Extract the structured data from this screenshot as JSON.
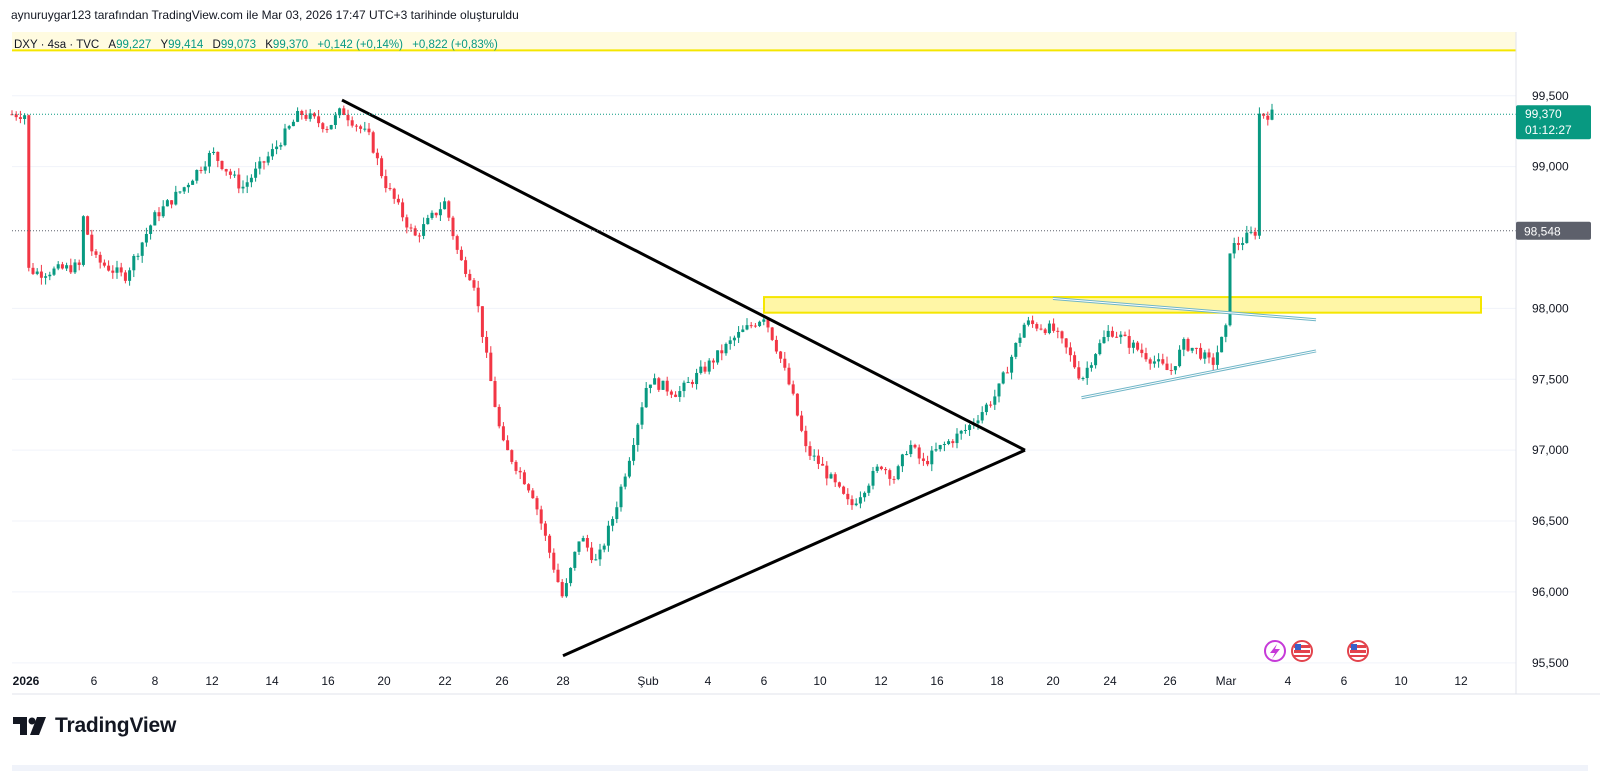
{
  "header": {
    "caption": "aynuruygar123 tarafından TradingView.com ile Mar 03, 2026 17:47 UTC+3 tarihinde oluşturuldu"
  },
  "legend": {
    "symbol": "DXY · 4sa · TVC",
    "open_label": "A",
    "open": "99,227",
    "high_label": "Y",
    "high": "99,414",
    "low_label": "D",
    "low": "99,073",
    "close_label": "K",
    "close": "99,370",
    "change": "+0,142 (+0,14%)",
    "change2": "+0,822 (+0,83%)"
  },
  "brand": {
    "name": "TradingView"
  },
  "colors": {
    "up": "#089981",
    "down": "#f23645",
    "zone_fill": "#fff6a6",
    "zone_border": "#f5e600",
    "trend_black": "#000000",
    "channel": "#6fb5c7",
    "price_tag": "#089981",
    "prev_close_tag": "#5d606b"
  },
  "chart_data": {
    "type": "candlestick",
    "y_range": [
      95.28,
      99.95
    ],
    "y_ticks": [
      {
        "value": 99.5,
        "label": "99,500"
      },
      {
        "value": 99.0,
        "label": "99,000"
      },
      {
        "value": 98.0,
        "label": "98,000"
      },
      {
        "value": 97.5,
        "label": "97,500"
      },
      {
        "value": 97.0,
        "label": "97,000"
      },
      {
        "value": 96.5,
        "label": "96,500"
      },
      {
        "value": 96.0,
        "label": "96,000"
      },
      {
        "value": 95.5,
        "label": "95,500"
      }
    ],
    "x_ticks": [
      {
        "date": "2026-01-01",
        "label": "2026",
        "bold": true
      },
      {
        "date": "2026-01-06",
        "label": "6"
      },
      {
        "date": "2026-01-08",
        "label": "8"
      },
      {
        "date": "2026-01-12",
        "label": "12"
      },
      {
        "date": "2026-01-14",
        "label": "14"
      },
      {
        "date": "2026-01-16",
        "label": "16"
      },
      {
        "date": "2026-01-20",
        "label": "20"
      },
      {
        "date": "2026-01-22",
        "label": "22"
      },
      {
        "date": "2026-01-26",
        "label": "26"
      },
      {
        "date": "2026-01-28",
        "label": "28"
      },
      {
        "date": "2026-02-02",
        "label": "Şub"
      },
      {
        "date": "2026-02-04",
        "label": "4"
      },
      {
        "date": "2026-02-06",
        "label": "6"
      },
      {
        "date": "2026-02-10",
        "label": "10"
      },
      {
        "date": "2026-02-12",
        "label": "12"
      },
      {
        "date": "2026-02-16",
        "label": "16"
      },
      {
        "date": "2026-02-18",
        "label": "18"
      },
      {
        "date": "2026-02-20",
        "label": "20"
      },
      {
        "date": "2026-02-24",
        "label": "24"
      },
      {
        "date": "2026-02-26",
        "label": "26"
      },
      {
        "date": "2026-03-02",
        "label": "Mar"
      },
      {
        "date": "2026-03-04",
        "label": "4"
      },
      {
        "date": "2026-03-06",
        "label": "6"
      },
      {
        "date": "2026-03-10",
        "label": "10"
      },
      {
        "date": "2026-03-12",
        "label": "12"
      }
    ],
    "last_price": {
      "value": 99.37,
      "label": "99,370",
      "countdown": "01:12:27"
    },
    "prev_close": {
      "value": 98.548,
      "label": "98,548"
    },
    "close_path": [
      [
        "2026-01-01",
        98.28
      ],
      [
        "2026-01-02",
        98.25
      ],
      [
        "2026-01-05",
        98.3
      ],
      [
        "2026-01-05",
        98.72
      ],
      [
        "2026-01-06",
        98.35
      ],
      [
        "2026-01-07",
        98.22
      ],
      [
        "2026-01-08",
        98.65
      ],
      [
        "2026-01-09",
        98.75
      ],
      [
        "2026-01-10",
        98.85
      ],
      [
        "2026-01-12",
        99.1
      ],
      [
        "2026-01-13",
        98.85
      ],
      [
        "2026-01-14",
        99.1
      ],
      [
        "2026-01-15",
        99.38
      ],
      [
        "2026-01-16",
        99.28
      ],
      [
        "2026-01-17",
        99.4
      ],
      [
        "2026-01-19",
        99.2
      ],
      [
        "2026-01-20",
        98.9
      ],
      [
        "2026-01-21",
        98.5
      ],
      [
        "2026-01-22",
        98.75
      ],
      [
        "2026-01-23",
        98.35
      ],
      [
        "2026-01-24",
        98.2
      ],
      [
        "2026-01-25",
        97.6
      ],
      [
        "2026-01-26",
        97.05
      ],
      [
        "2026-01-27",
        96.7
      ],
      [
        "2026-01-28",
        95.95
      ],
      [
        "2026-01-29",
        96.4
      ],
      [
        "2026-01-30",
        96.2
      ],
      [
        "2026-01-31",
        96.55
      ],
      [
        "2026-02-01",
        97.0
      ],
      [
        "2026-02-02",
        97.5
      ],
      [
        "2026-02-03",
        97.4
      ],
      [
        "2026-02-04",
        97.6
      ],
      [
        "2026-02-05",
        97.8
      ],
      [
        "2026-02-06",
        97.95
      ],
      [
        "2026-02-07",
        97.7
      ],
      [
        "2026-02-08",
        97.4
      ],
      [
        "2026-02-09",
        97.0
      ],
      [
        "2026-02-10",
        96.9
      ],
      [
        "2026-02-11",
        96.6
      ],
      [
        "2026-02-12",
        96.9
      ],
      [
        "2026-02-13",
        96.8
      ],
      [
        "2026-02-14",
        97.05
      ],
      [
        "2026-02-15",
        96.9
      ],
      [
        "2026-02-16",
        97.0
      ],
      [
        "2026-02-17",
        97.15
      ],
      [
        "2026-02-18",
        97.4
      ],
      [
        "2026-02-19",
        97.9
      ],
      [
        "2026-02-20",
        97.85
      ],
      [
        "2026-02-21",
        97.7
      ],
      [
        "2026-02-22",
        97.5
      ],
      [
        "2026-02-23",
        97.7
      ],
      [
        "2026-02-24",
        97.85
      ],
      [
        "2026-02-25",
        97.7
      ],
      [
        "2026-02-26",
        97.55
      ],
      [
        "2026-02-27",
        97.75
      ],
      [
        "2026-02-28",
        97.7
      ],
      [
        "2026-03-01",
        97.6
      ],
      [
        "2026-03-02",
        97.85
      ],
      [
        "2026-03-02",
        98.4
      ],
      [
        "2026-03-03",
        98.55
      ],
      [
        "2026-03-03",
        99.25
      ],
      [
        "2026-03-03",
        99.37
      ]
    ],
    "annotations": {
      "resistance_zone": {
        "from": "2026-02-06",
        "to": "2026-03-12",
        "low": 97.97,
        "high": 98.08
      },
      "top_band_line": {
        "value": 99.82
      },
      "triangle_upper": [
        [
          "2026-01-17",
          99.47
        ],
        [
          "2026-02-19",
          97.0
        ]
      ],
      "triangle_lower": [
        [
          "2026-01-28",
          95.55
        ],
        [
          "2026-02-19",
          97.0
        ]
      ],
      "channel_upper": [
        [
          "2026-02-20",
          98.07
        ],
        [
          "2026-03-05",
          97.92
        ]
      ],
      "channel_lower": [
        [
          "2026-02-22",
          97.37
        ],
        [
          "2026-03-05",
          97.7
        ]
      ]
    }
  }
}
